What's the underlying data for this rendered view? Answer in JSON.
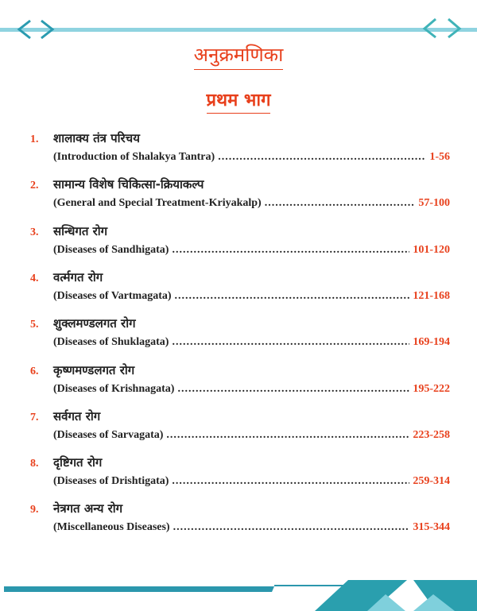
{
  "heading": "अनुक्रमणिका",
  "part": "प्रथम भाग",
  "colors": {
    "accent": "#e8401c",
    "teal": "#2aa6b8",
    "text": "#222222"
  },
  "decorations": {
    "top": "chevron-border",
    "bottom": "teal-geometric-band"
  },
  "entries": [
    {
      "num": "1.",
      "hindi": "शालाक्य तंत्र परिचय",
      "english": "(Introduction of Shalakya Tantra)",
      "pages": "1-56"
    },
    {
      "num": "2.",
      "hindi": "सामान्य विशेष चिकित्सा-क्रियाकल्प",
      "english": "(General and Special Treatment-Kriyakalp)",
      "pages": "57-100"
    },
    {
      "num": "3.",
      "hindi": "सन्धिगत रोग",
      "english": "(Diseases of Sandhigata)",
      "pages": "101-120"
    },
    {
      "num": "4.",
      "hindi": "वर्त्मगत रोग",
      "english": "(Diseases of Vartmagata)",
      "pages": "121-168"
    },
    {
      "num": "5.",
      "hindi": "शुक्लमण्डलगत रोग",
      "english": "(Diseases of Shuklagata)",
      "pages": "169-194"
    },
    {
      "num": "6.",
      "hindi": "कृष्णमण्डलगत रोग",
      "english": "(Diseases of Krishnagata)",
      "pages": "195-222"
    },
    {
      "num": "7.",
      "hindi": "सर्वगत रोग",
      "english": "(Diseases of Sarvagata)",
      "pages": "223-258"
    },
    {
      "num": "8.",
      "hindi": "दृष्टिगत रोग",
      "english": "(Diseases of Drishtigata)",
      "pages": "259-314"
    },
    {
      "num": "9.",
      "hindi": "नेत्रगत अन्य रोग",
      "english": "(Miscellaneous Diseases)",
      "pages": "315-344"
    }
  ]
}
